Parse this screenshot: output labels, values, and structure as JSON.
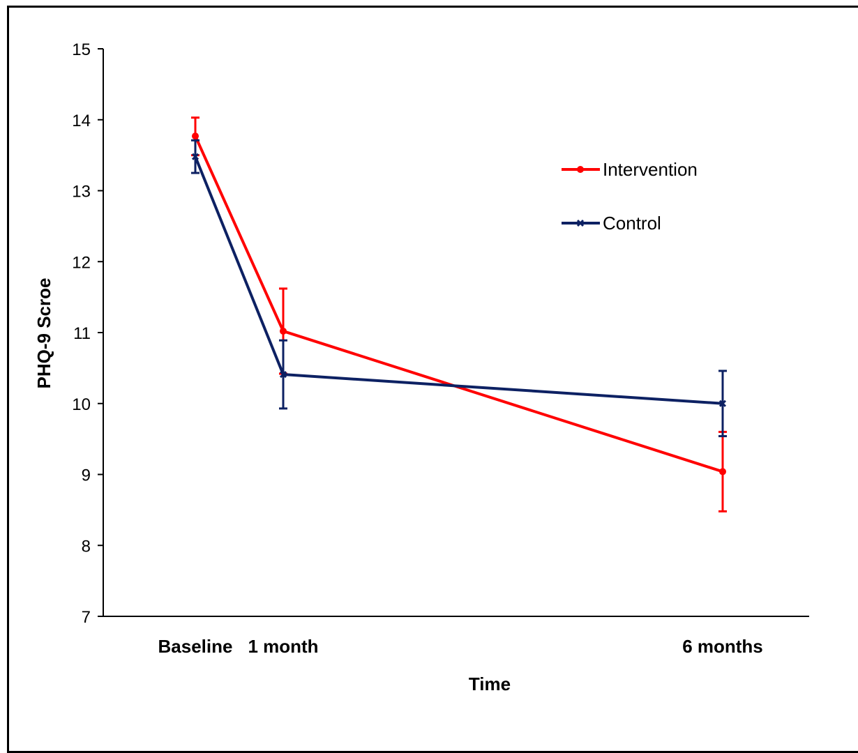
{
  "chart_data": {
    "type": "line",
    "title": "",
    "xlabel": "Time",
    "ylabel": "PHQ-9 Scroe",
    "categories": [
      "Baseline",
      "1 month",
      "6 months"
    ],
    "x": [
      0,
      1,
      6
    ],
    "ylim": [
      7,
      15
    ],
    "yticks": [
      7,
      8,
      9,
      10,
      11,
      12,
      13,
      14,
      15
    ],
    "grid": false,
    "legend_position": "top-right",
    "series": [
      {
        "name": "Intervention",
        "color": "#ff0000",
        "marker": "circle",
        "values": [
          13.77,
          11.02,
          9.04
        ],
        "error_low": [
          13.5,
          10.42,
          8.48
        ],
        "error_high": [
          14.03,
          11.62,
          9.6
        ]
      },
      {
        "name": "Control",
        "color": "#0d2163",
        "marker": "x",
        "values": [
          13.48,
          10.41,
          10.0
        ],
        "error_low": [
          13.25,
          9.93,
          9.54
        ],
        "error_high": [
          13.71,
          10.89,
          10.46
        ]
      }
    ]
  }
}
